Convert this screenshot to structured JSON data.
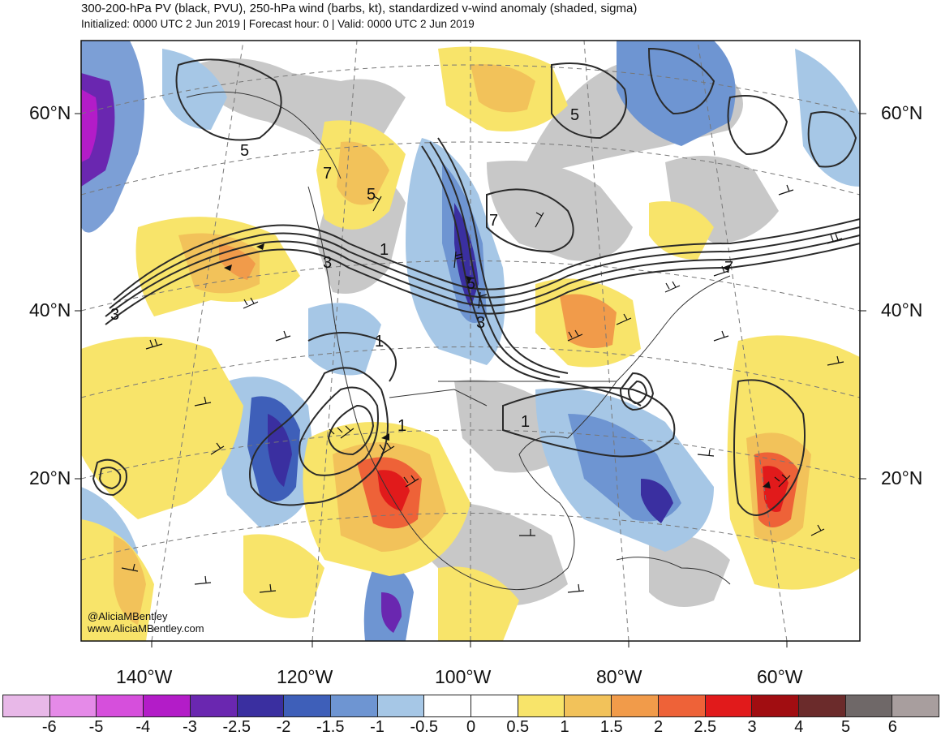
{
  "header": {
    "title": "300-200-hPa PV (black, PVU), 250-hPa wind (barbs, kt), standardized v-wind anomaly (shaded, sigma)",
    "subtitle": "Initialized: 0000 UTC 2 Jun 2019 | Forecast hour: 0 | Valid: 0000 UTC 2 Jun 2019"
  },
  "credit": {
    "handle": "@AliciaMBentley",
    "site": "www.AliciaMBentley.com"
  },
  "latitude_labels": [
    "60°N",
    "40°N",
    "20°N"
  ],
  "longitude_labels": [
    "140°W",
    "120°W",
    "100°W",
    "80°W",
    "60°W"
  ],
  "contour_labels": [
    "5",
    "5",
    "5",
    "5",
    "3",
    "3",
    "3",
    "1",
    "1",
    "1",
    "1",
    "7",
    "7",
    "7"
  ],
  "colorbar": {
    "colors": [
      "#e8b8e8",
      "#e58ae8",
      "#d64fdc",
      "#b31cc8",
      "#6a27b0",
      "#3a2fa0",
      "#3e5fb9",
      "#6e95d2",
      "#a6c7e6",
      "#ffffff",
      "#ffffff",
      "#f8e46a",
      "#f2c25a",
      "#f19b4a",
      "#ee6238",
      "#e11a1b",
      "#a10d11",
      "#6b2b2b",
      "#6f6868",
      "#a89e9e"
    ],
    "labels": [
      "-6",
      "-5",
      "-4",
      "-3",
      "-2.5",
      "-2",
      "-1.5",
      "-1",
      "-0.5",
      "0",
      "0.5",
      "1",
      "1.5",
      "2",
      "2.5",
      "3",
      "4",
      "5",
      "6"
    ]
  }
}
